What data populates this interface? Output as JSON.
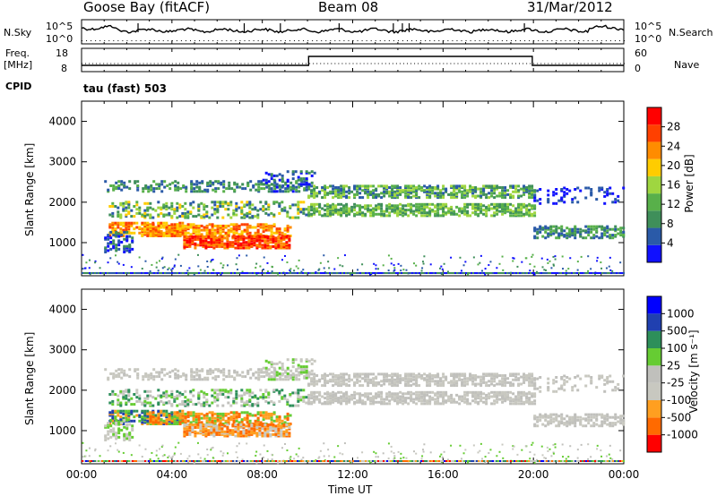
{
  "header": {
    "station": "Goose Bay (fitACF)",
    "beam": "Beam 08",
    "date": "31/Mar/2012"
  },
  "side_labels": {
    "nsky": "N.Sky",
    "nsearch": "N.Search",
    "freq_line1": "Freq.",
    "freq_line2": "[MHz]",
    "nave": "Nave",
    "cpid": "CPID",
    "cpid_value": "tau (fast) 503"
  },
  "small_axes": {
    "noise_left_top": "10^5",
    "noise_left_bottom": "10^0",
    "noise_right_top": "10^5",
    "noise_right_bottom": "10^0",
    "freq_left_top": "18",
    "freq_left_bottom": "8",
    "nave_right_top": "60",
    "nave_right_bottom": "0"
  },
  "x_axis": {
    "label": "Time UT",
    "ticks": [
      "00:00",
      "04:00",
      "08:00",
      "12:00",
      "16:00",
      "20:00",
      "00:00"
    ]
  },
  "colors": {
    "power": [
      "#1010ff",
      "#2a5aa8",
      "#3f8f5a",
      "#58b04a",
      "#9fd640",
      "#ffcc00",
      "#ff8c00",
      "#ff4000",
      "#ff0000"
    ],
    "velocity": [
      "#ff0000",
      "#ff6a00",
      "#ff9f20",
      "#c8c8c0",
      "#c0c0bc",
      "#66cc33",
      "#2d8f5a",
      "#2040b0",
      "#0000ff"
    ]
  },
  "chart_data": [
    {
      "type": "heatmap",
      "panel": "power",
      "ylabel": "Slant Range [km]",
      "yticks": [
        1000,
        2000,
        3000,
        4000
      ],
      "ylim": [
        180,
        4500
      ],
      "xlim_hours": [
        0,
        24
      ],
      "colorbar_label": "Power [dB]",
      "colorbar_ticks": [
        "4",
        "8",
        "12",
        "16",
        "20",
        "24",
        "28"
      ],
      "colorbar_range": [
        0,
        30
      ]
    },
    {
      "type": "heatmap",
      "panel": "velocity",
      "ylabel": "Slant Range [km]",
      "yticks": [
        1000,
        2000,
        3000,
        4000
      ],
      "ylim": [
        180,
        4500
      ],
      "xlim_hours": [
        0,
        24
      ],
      "colorbar_label": "Velocity [m s⁻¹]",
      "colorbar_ticks": [
        "-1000",
        "-500",
        "-100",
        "-25",
        "25",
        "100",
        "500",
        "1000"
      ],
      "colorbar_range": [
        -1000,
        1000
      ]
    }
  ]
}
